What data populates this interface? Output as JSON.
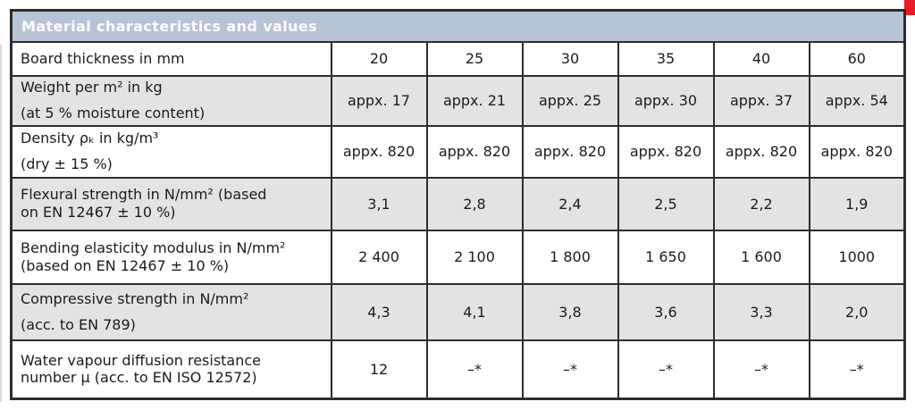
{
  "colors": {
    "border": "#2d2d2d",
    "header_bg": "#b7c3d6",
    "shaded_row_bg": "#e3e3e3",
    "text": "#1b1b1b",
    "title_text": "#ffffff",
    "corner_mark_red": "#e51e29"
  },
  "table": {
    "title": "Material characteristics and values",
    "rows": [
      {
        "label": [
          "Board thickness in mm"
        ],
        "values": [
          "20",
          "25",
          "30",
          "35",
          "40",
          "60"
        ],
        "shaded": false,
        "spread": false
      },
      {
        "label": [
          "Weight per m² in kg",
          "(at 5 % moisture content)"
        ],
        "values": [
          "appx. 17",
          "appx. 21",
          "appx. 25",
          "appx. 30",
          "appx. 37",
          "appx. 54"
        ],
        "shaded": true,
        "spread": true
      },
      {
        "label": [
          "Density ρₖ in kg/m³",
          "(dry ± 15 %)"
        ],
        "values": [
          "appx. 820",
          "appx. 820",
          "appx. 820",
          "appx. 820",
          "appx. 820",
          "appx. 820"
        ],
        "shaded": false,
        "spread": true
      },
      {
        "label": [
          "Flexural strength in N/mm² (based",
          "on EN 12467 ± 10 %)"
        ],
        "values": [
          "3,1",
          "2,8",
          "2,4",
          "2,5",
          "2,2",
          "1,9"
        ],
        "shaded": true,
        "spread": false
      },
      {
        "label": [
          "Bending elasticity modulus in N/mm²",
          "(based on EN 12467 ± 10 %)"
        ],
        "values": [
          "2 400",
          "2 100",
          "1 800",
          "1 650",
          "1 600",
          "1000"
        ],
        "shaded": false,
        "spread": false
      },
      {
        "label": [
          "Compressive strength in N/mm²",
          "(acc. to EN 789)"
        ],
        "values": [
          "4,3",
          "4,1",
          "3,8",
          "3,6",
          "3,3",
          "2,0"
        ],
        "shaded": true,
        "spread": true
      },
      {
        "label": [
          "Water vapour diffusion resistance",
          "number μ (acc. to EN ISO 12572)"
        ],
        "values": [
          "12",
          "–*",
          "–*",
          "–*",
          "–*",
          "–*"
        ],
        "shaded": false,
        "spread": false
      }
    ]
  }
}
